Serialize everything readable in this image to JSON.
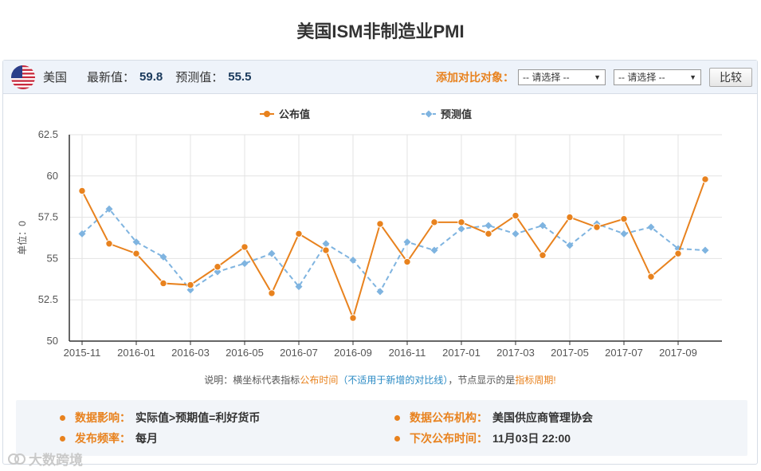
{
  "page": {
    "title": "美国ISM非制造业PMI"
  },
  "toolbar": {
    "country": "美国",
    "latest_label": "最新值：",
    "latest_value": "59.8",
    "forecast_label": "预测值：",
    "forecast_value": "55.5",
    "compare_label": "添加对比对象：",
    "select1": "-- 请选择 --",
    "select2": "-- 请选择 --",
    "compare_button": "比较"
  },
  "chart_data": {
    "type": "line",
    "title": "",
    "ylabel": "单位：0",
    "xlabel": "",
    "ylim": [
      50,
      62.5
    ],
    "yticks": [
      50,
      52.5,
      55,
      57.5,
      60,
      62.5
    ],
    "ytick_labels": [
      "50",
      "52.5",
      "55",
      "57.5",
      "60",
      "62.5"
    ],
    "x": [
      "2015-11",
      "2015-12",
      "2016-01",
      "2016-02",
      "2016-03",
      "2016-04",
      "2016-05",
      "2016-06",
      "2016-07",
      "2016-08",
      "2016-09",
      "2016-10",
      "2016-11",
      "2016-12",
      "2017-01",
      "2017-02",
      "2017-03",
      "2017-04",
      "2017-05",
      "2017-06",
      "2017-07",
      "2017-08",
      "2017-09",
      "2017-10"
    ],
    "xtick_labels": [
      "2015-11",
      "2016-01",
      "2016-03",
      "2016-05",
      "2016-07",
      "2016-09",
      "2016-11",
      "2017-01",
      "2017-03",
      "2017-05",
      "2017-07",
      "2017-09"
    ],
    "legend_position": "top-center",
    "series": [
      {
        "name": "公布值",
        "color": "#e8821e",
        "style": "solid",
        "marker": "circle",
        "values": [
          59.1,
          55.9,
          55.3,
          53.5,
          53.4,
          54.5,
          55.7,
          52.9,
          56.5,
          55.5,
          51.4,
          57.1,
          54.8,
          57.2,
          57.2,
          56.5,
          57.6,
          55.2,
          57.5,
          56.9,
          57.4,
          53.9,
          55.3,
          59.8
        ]
      },
      {
        "name": "预测值",
        "color": "#7fb4e0",
        "style": "dashed",
        "marker": "diamond",
        "values": [
          56.5,
          58.0,
          56.0,
          55.1,
          53.1,
          54.2,
          54.7,
          55.3,
          53.3,
          55.9,
          54.9,
          53.0,
          56.0,
          55.5,
          56.8,
          57.0,
          56.5,
          57.0,
          55.8,
          57.1,
          56.5,
          56.9,
          55.6,
          55.5
        ]
      }
    ]
  },
  "note": {
    "part1": "说明：横坐标代表指标",
    "part2": "公布时间",
    "part3": "（不适用于新增的对比线）",
    "part4": "，节点显示的是",
    "part5": "指标周期!"
  },
  "info": {
    "impact_key": "数据影响：",
    "impact_val": "实际值>预期值=利好货币",
    "freq_key": "发布频率：",
    "freq_val": "每月",
    "agency_key": "数据公布机构：",
    "agency_val": "美国供应商管理协会",
    "next_key": "下次公布时间：",
    "next_val": "11月03日 22:00"
  },
  "watermark": {
    "text": "大数跨境"
  },
  "colors": {
    "accent": "#e8821e",
    "forecast": "#7fb4e0",
    "toolbar_bg": "#eef3fa"
  }
}
